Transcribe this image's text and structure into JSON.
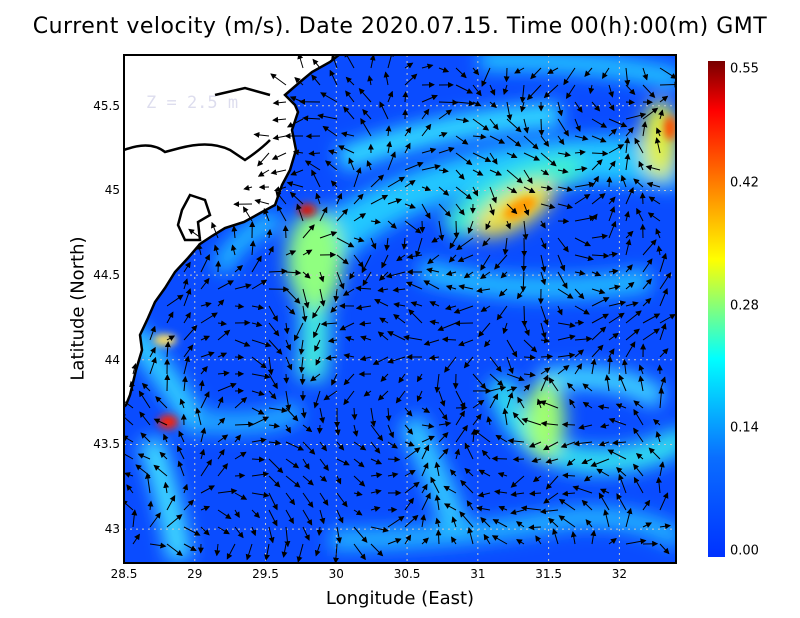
{
  "chart_data": {
    "type": "heatmap",
    "title": "Current velocity (m/s). Date 2020.07.15. Time 00(h):00(m) GMT",
    "xlabel": "Longitude (East)",
    "ylabel": "Latitude (North)",
    "annotation": "Z = 2.5 m",
    "xlim": [
      28.5,
      32.4
    ],
    "ylim": [
      42.8,
      45.8
    ],
    "xticks": [
      "28.5",
      "29",
      "29.5",
      "30",
      "30.5",
      "31",
      "31.5",
      "32"
    ],
    "yticks": [
      "45.5",
      "45",
      "44.5",
      "44",
      "43.5",
      "43"
    ],
    "grid": true,
    "colorbar": {
      "label_ticks": [
        "0.55",
        "0.42",
        "0.28",
        "0.14",
        "0.00"
      ],
      "range": [
        0,
        0.55
      ],
      "colors": [
        "#0032ff",
        "#0a78ff",
        "#00ffff",
        "#ffff00",
        "#ff7800",
        "#ff0000",
        "#780000"
      ]
    },
    "speed_maxima": [
      {
        "lon": 28.8,
        "lat": 43.65,
        "value": 0.5
      },
      {
        "lon": 29.78,
        "lat": 44.88,
        "value": 0.5
      },
      {
        "lon": 31.3,
        "lat": 44.85,
        "value": 0.4
      },
      {
        "lon": 32.35,
        "lat": 45.4,
        "value": 0.45
      }
    ]
  }
}
